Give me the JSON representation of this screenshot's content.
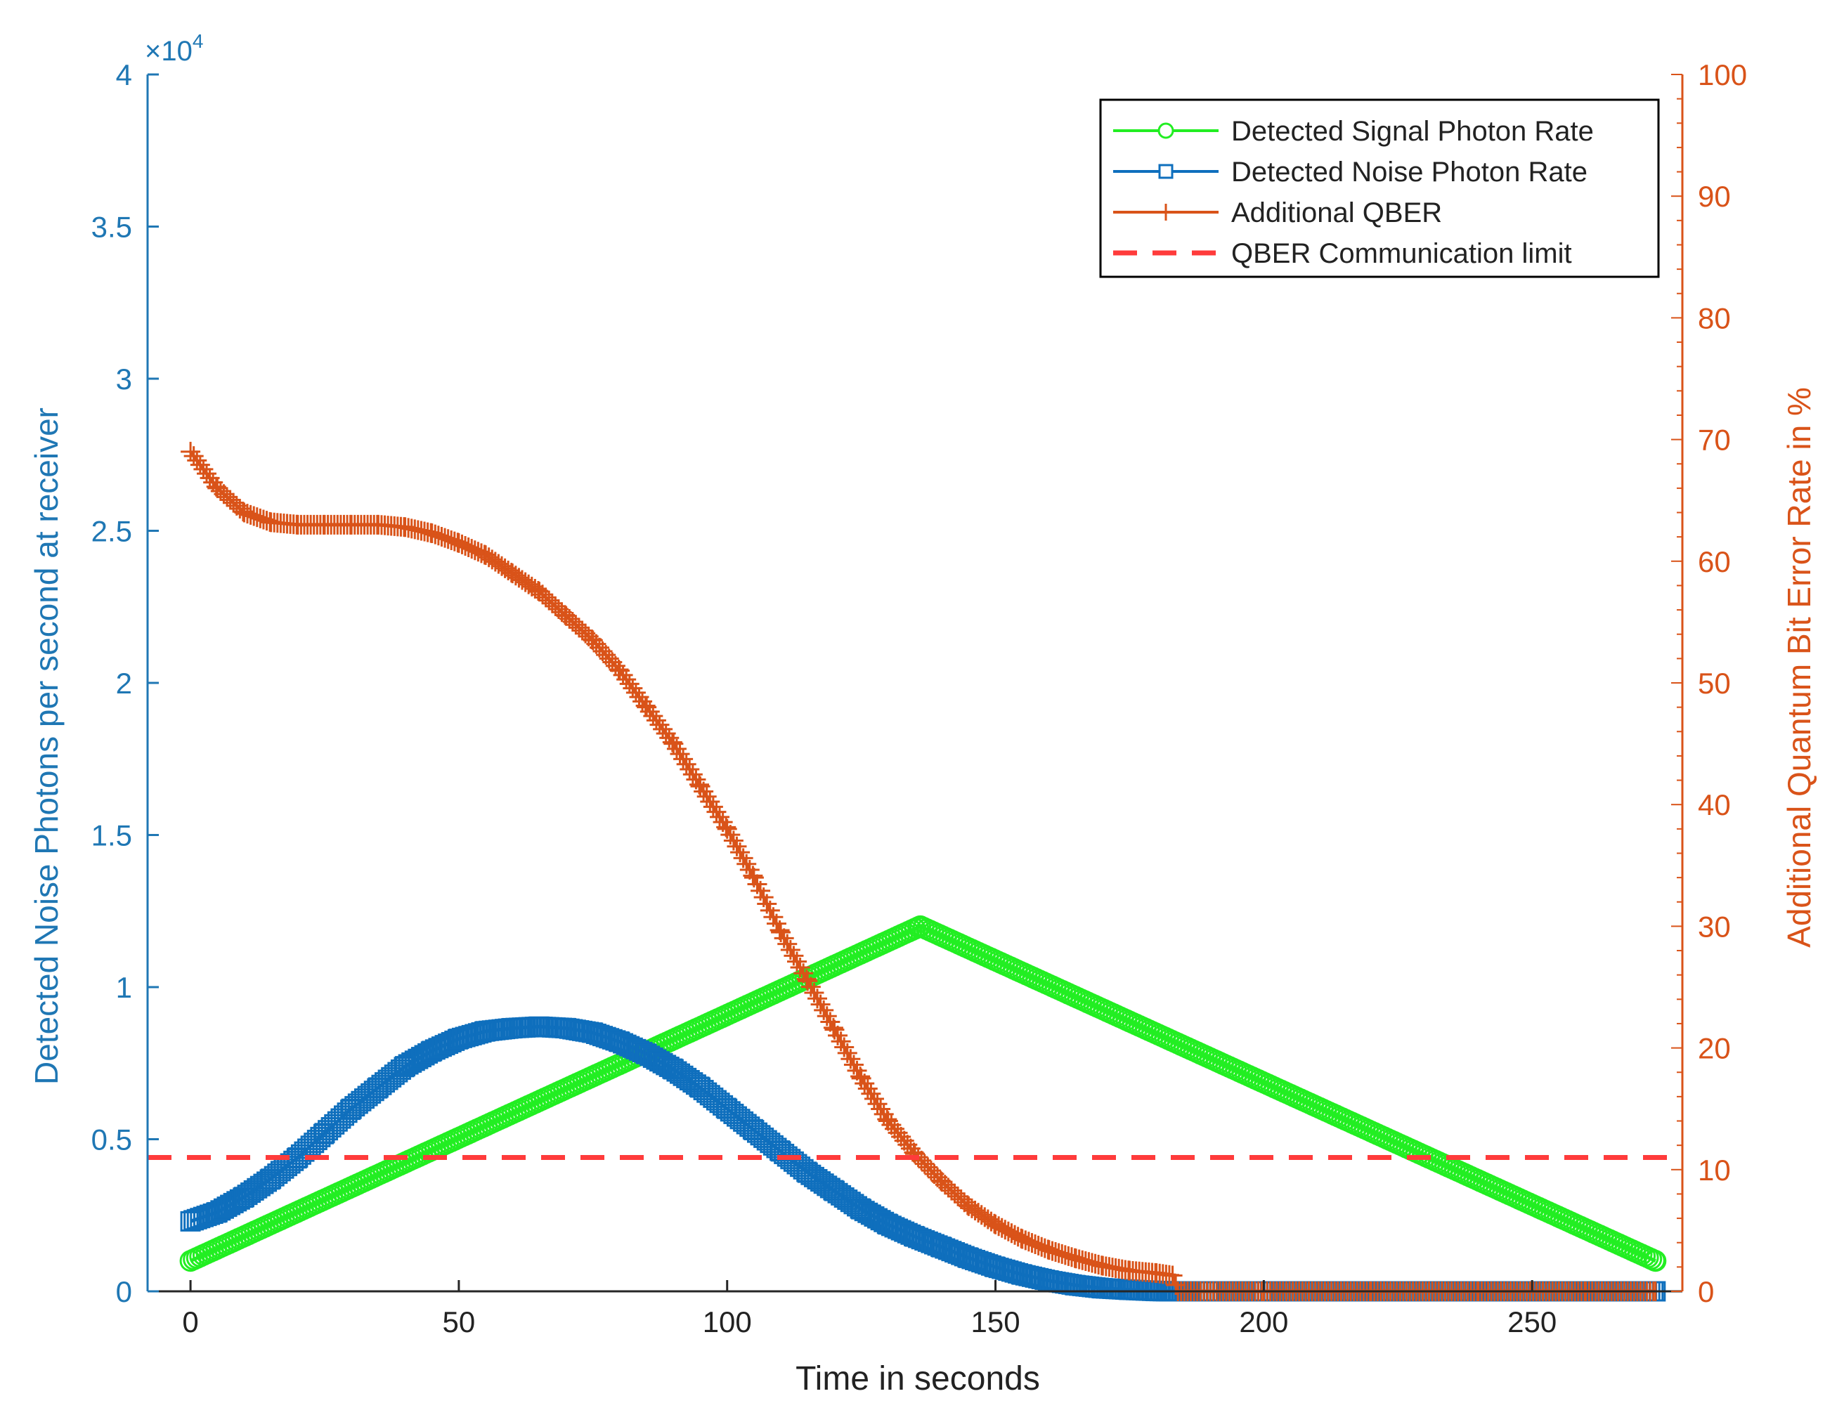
{
  "chart_data": {
    "type": "line",
    "title": "",
    "xlabel": "Time in seconds",
    "ylabel_left": "Detected Noise Photons per second at receiver",
    "ylabel_right": "Additional Quantum Bit Error Rate in %",
    "left_axis_multiplier": "×10",
    "left_axis_exponent": "4",
    "xlim": [
      -8,
      278
    ],
    "ylim_left": [
      0,
      4
    ],
    "ylim_right": [
      0,
      100
    ],
    "x_ticks": [
      0,
      50,
      100,
      150,
      200,
      250
    ],
    "x_tick_labels": [
      "0",
      "50",
      "100",
      "150",
      "200",
      "250"
    ],
    "y_left_ticks": [
      0,
      0.5,
      1,
      1.5,
      2,
      2.5,
      3,
      3.5,
      4
    ],
    "y_left_tick_labels": [
      "0",
      "0.5",
      "1",
      "1.5",
      "2",
      "2.5",
      "3",
      "3.5",
      "4"
    ],
    "y_right_ticks": [
      0,
      10,
      20,
      30,
      40,
      50,
      60,
      70,
      80,
      90,
      100
    ],
    "y_right_tick_labels": [
      "0",
      "10",
      "20",
      "30",
      "40",
      "50",
      "60",
      "70",
      "80",
      "90",
      "100"
    ],
    "legend_position": "top-right",
    "series": [
      {
        "name": "Detected Signal Photon Rate",
        "axis": "left",
        "color": "#22ee22",
        "marker": "circle",
        "x": [
          0,
          136,
          273
        ],
        "y": [
          0.1,
          1.2,
          0.1
        ]
      },
      {
        "name": "Detected Noise Photon Rate",
        "axis": "left",
        "color": "#0f6fbd",
        "marker": "square",
        "x": [
          0,
          5,
          10,
          15,
          20,
          25,
          30,
          35,
          40,
          45,
          50,
          55,
          60,
          65,
          70,
          75,
          80,
          85,
          90,
          95,
          100,
          105,
          110,
          115,
          120,
          125,
          130,
          135,
          140,
          145,
          150,
          155,
          160,
          165,
          170,
          175,
          180,
          183,
          190,
          200,
          220,
          240,
          260,
          273
        ],
        "y": [
          0.23,
          0.26,
          0.31,
          0.37,
          0.44,
          0.52,
          0.6,
          0.67,
          0.74,
          0.79,
          0.83,
          0.855,
          0.865,
          0.87,
          0.865,
          0.85,
          0.82,
          0.78,
          0.73,
          0.67,
          0.6,
          0.53,
          0.46,
          0.39,
          0.33,
          0.27,
          0.22,
          0.18,
          0.145,
          0.11,
          0.08,
          0.055,
          0.035,
          0.02,
          0.01,
          0.005,
          0.001,
          0.0,
          0.0,
          0.0,
          0.0,
          0.0,
          0.0,
          0.0
        ]
      },
      {
        "name": "Additional QBER",
        "axis": "right",
        "color": "#d95319",
        "marker": "plus",
        "x": [
          0,
          5,
          10,
          15,
          20,
          25,
          30,
          35,
          40,
          45,
          50,
          55,
          60,
          65,
          70,
          75,
          80,
          85,
          90,
          95,
          100,
          105,
          110,
          115,
          120,
          125,
          130,
          135,
          140,
          145,
          150,
          155,
          160,
          165,
          170,
          175,
          180,
          183,
          184,
          200,
          220,
          240,
          260,
          273
        ],
        "y": [
          69,
          66,
          64,
          63.2,
          63,
          63,
          63,
          63,
          62.8,
          62.3,
          61.5,
          60.5,
          59,
          57.5,
          55.5,
          53.5,
          51,
          48,
          45,
          41.5,
          38,
          34,
          29.5,
          25.5,
          21.5,
          17.5,
          14,
          11.3,
          9,
          7,
          5.5,
          4.3,
          3.4,
          2.7,
          2.1,
          1.7,
          1.5,
          1.3,
          0,
          0,
          0,
          0,
          0,
          0
        ]
      },
      {
        "name": "QBER Communication limit",
        "axis": "right",
        "color": "#ff3b3b",
        "style": "dashed",
        "x": [
          -8,
          278
        ],
        "y": [
          11,
          11
        ]
      }
    ]
  }
}
